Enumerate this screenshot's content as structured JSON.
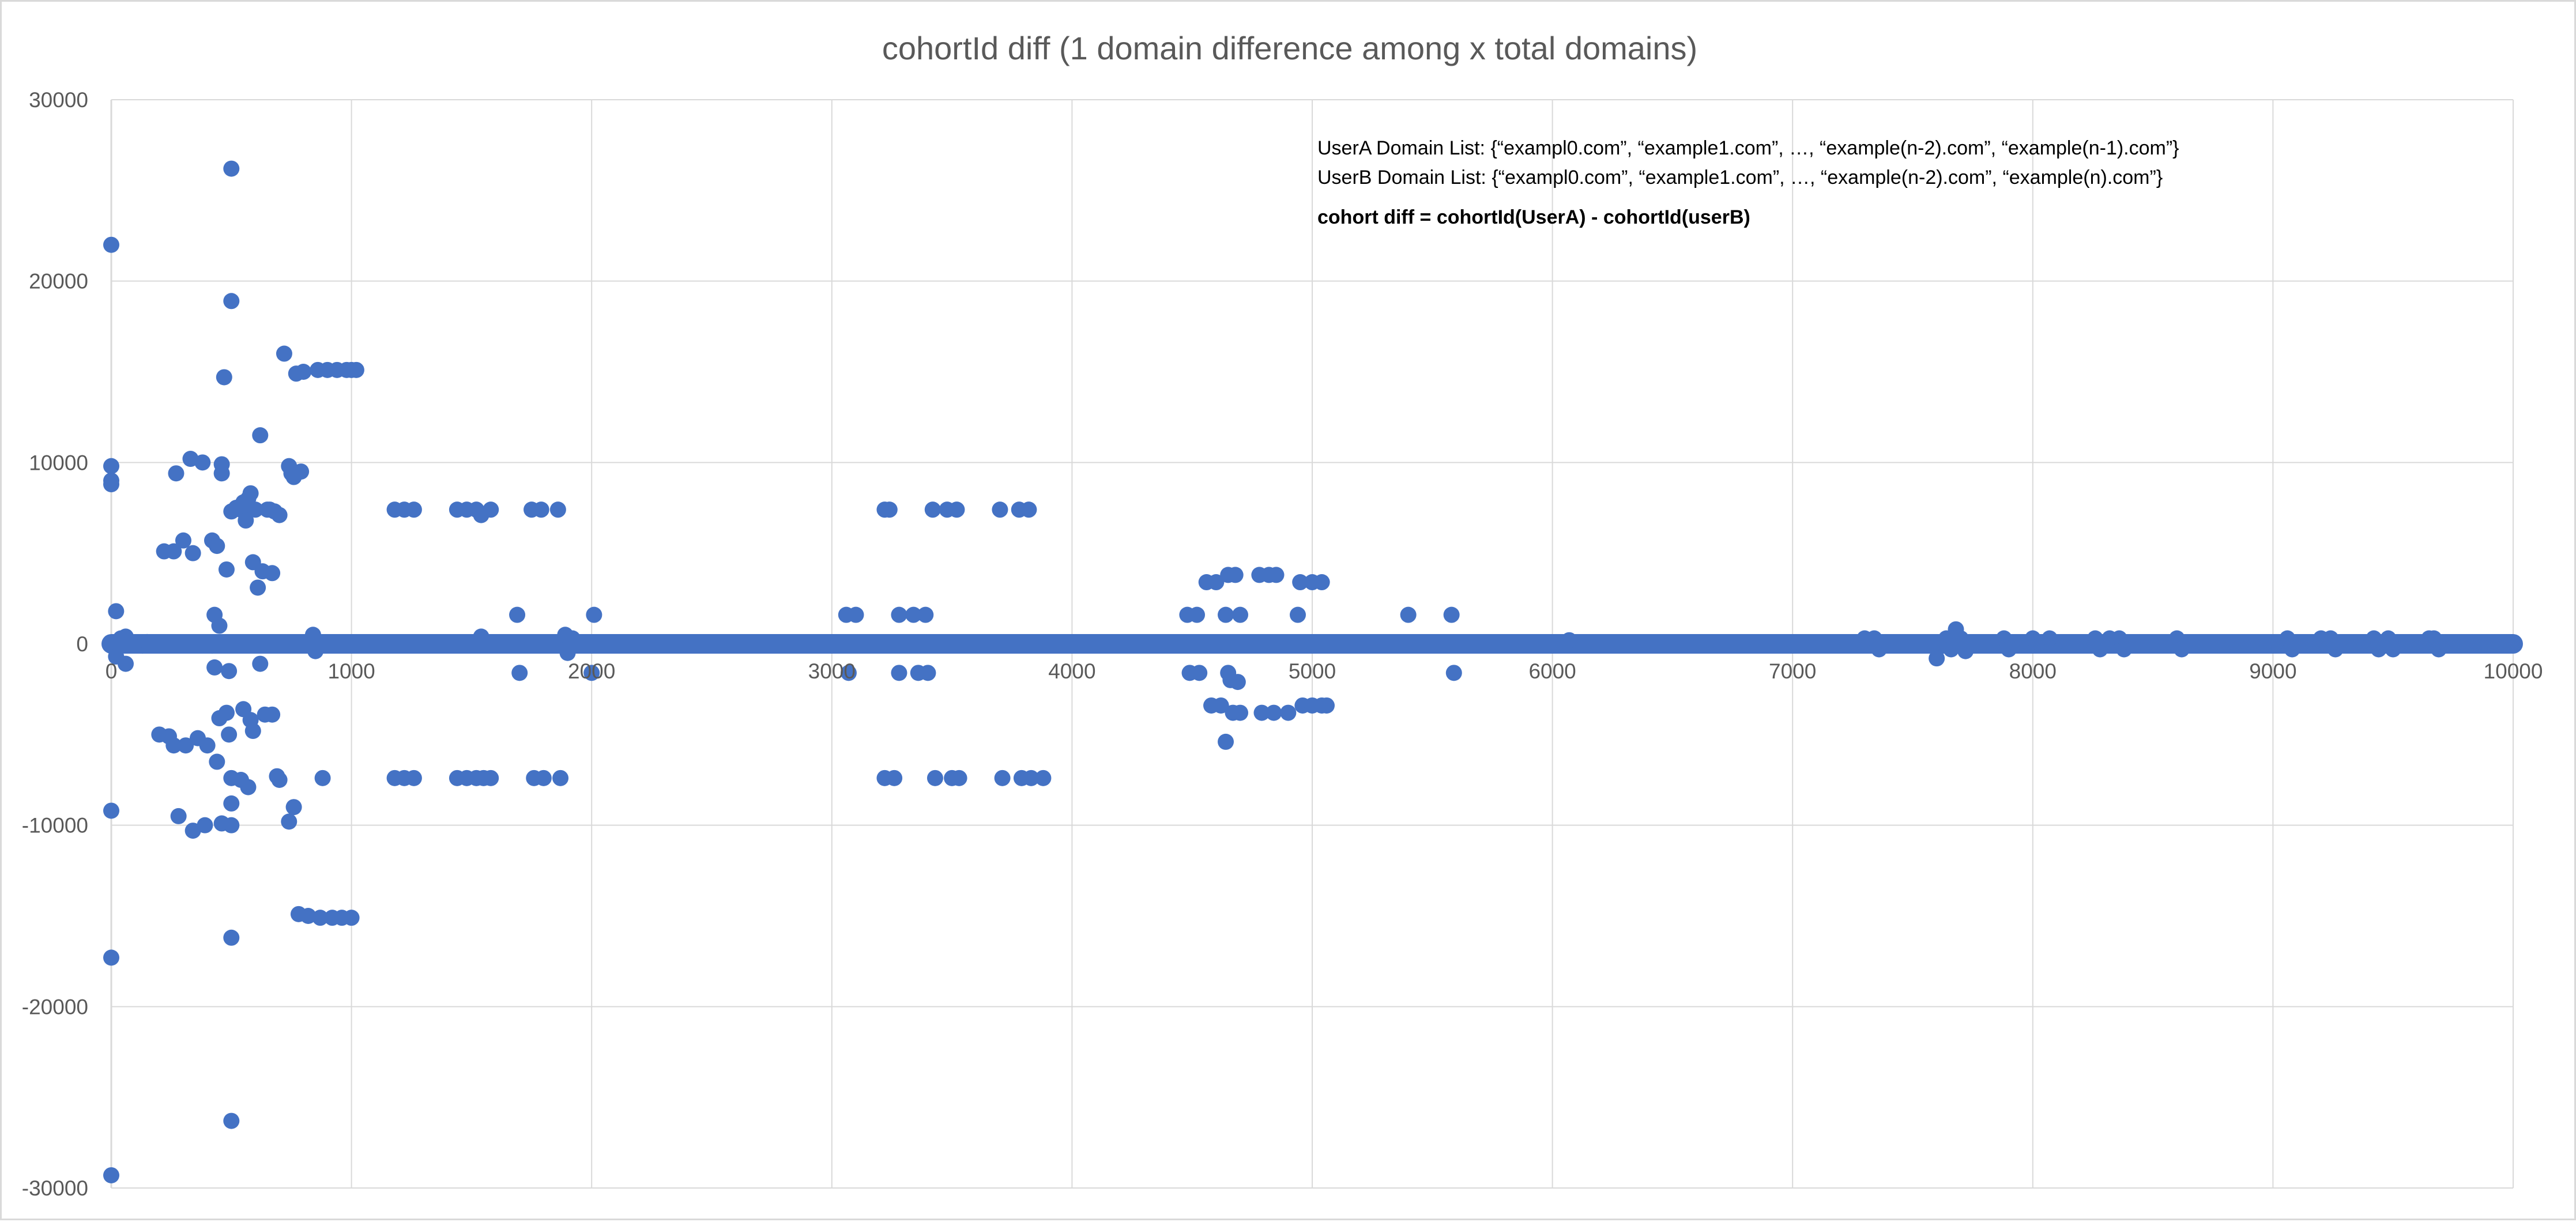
{
  "chart_data": {
    "type": "scatter",
    "title": "cohortId diff (1 domain difference among x total domains)",
    "xlabel": "",
    "ylabel": "",
    "xlim": [
      0,
      10000
    ],
    "ylim": [
      -30000,
      30000
    ],
    "x_ticks": [
      0,
      1000,
      2000,
      3000,
      4000,
      5000,
      6000,
      7000,
      8000,
      9000,
      10000
    ],
    "y_ticks": [
      30000,
      20000,
      10000,
      0,
      -10000,
      -20000,
      -30000
    ],
    "grid": true,
    "legend": "none",
    "marker_color": "#4472c4",
    "annotations": [
      "UserA Domain List:  {“exampl0.com”, “example1.com”, …, “example(n-2).com”, “example(n-1).com”}",
      "UserB Domain List: {“exampl0.com”, “example1.com”, …, “example(n-2).com”, “example(n).com”}",
      "cohort diff = cohortId(UserA) - cohortId(userB)"
    ],
    "baseline": {
      "x_start": 0,
      "x_end": 10000,
      "y": 0
    },
    "points": [
      [
        0,
        -29300
      ],
      [
        0,
        -17300
      ],
      [
        0,
        -9200
      ],
      [
        0,
        22000
      ],
      [
        0,
        9800
      ],
      [
        0,
        9000
      ],
      [
        0,
        8800
      ],
      [
        20,
        1800
      ],
      [
        20,
        -700
      ],
      [
        40,
        300
      ],
      [
        60,
        -1100
      ],
      [
        60,
        400
      ],
      [
        130,
        -100
      ],
      [
        150,
        100
      ],
      [
        200,
        -5000
      ],
      [
        220,
        5100
      ],
      [
        240,
        -5100
      ],
      [
        260,
        5100
      ],
      [
        260,
        -5600
      ],
      [
        270,
        9400
      ],
      [
        280,
        -9500
      ],
      [
        300,
        5700
      ],
      [
        310,
        -5600
      ],
      [
        330,
        10200
      ],
      [
        340,
        -10300
      ],
      [
        340,
        5000
      ],
      [
        360,
        -5200
      ],
      [
        380,
        10000
      ],
      [
        390,
        -10000
      ],
      [
        400,
        -5600
      ],
      [
        420,
        5700
      ],
      [
        420,
        -100
      ],
      [
        430,
        1600
      ],
      [
        430,
        -1300
      ],
      [
        440,
        5400
      ],
      [
        440,
        -6500
      ],
      [
        450,
        1000
      ],
      [
        450,
        -4100
      ],
      [
        460,
        9900
      ],
      [
        460,
        -9900
      ],
      [
        460,
        9400
      ],
      [
        470,
        14700
      ],
      [
        480,
        4100
      ],
      [
        480,
        -3800
      ],
      [
        490,
        -1500
      ],
      [
        490,
        -5000
      ],
      [
        500,
        26200
      ],
      [
        500,
        -26300
      ],
      [
        500,
        18900
      ],
      [
        500,
        -16200
      ],
      [
        500,
        -8800
      ],
      [
        500,
        -10000
      ],
      [
        500,
        7300
      ],
      [
        500,
        -7400
      ],
      [
        520,
        7500
      ],
      [
        540,
        7400
      ],
      [
        540,
        -7500
      ],
      [
        550,
        7800
      ],
      [
        550,
        -3600
      ],
      [
        560,
        6800
      ],
      [
        570,
        8000
      ],
      [
        570,
        -7900
      ],
      [
        580,
        8300
      ],
      [
        580,
        -4200
      ],
      [
        590,
        4500
      ],
      [
        590,
        -4800
      ],
      [
        600,
        7400
      ],
      [
        610,
        3100
      ],
      [
        620,
        11500
      ],
      [
        620,
        -1100
      ],
      [
        630,
        4000
      ],
      [
        640,
        -3900
      ],
      [
        650,
        7400
      ],
      [
        660,
        7400
      ],
      [
        670,
        3900
      ],
      [
        670,
        -3900
      ],
      [
        680,
        7300
      ],
      [
        690,
        -7300
      ],
      [
        700,
        7100
      ],
      [
        700,
        -7500
      ],
      [
        720,
        16000
      ],
      [
        740,
        9800
      ],
      [
        740,
        -9800
      ],
      [
        750,
        9400
      ],
      [
        760,
        9200
      ],
      [
        760,
        -9000
      ],
      [
        770,
        14900
      ],
      [
        780,
        -14900
      ],
      [
        790,
        9500
      ],
      [
        800,
        15000
      ],
      [
        820,
        -15000
      ],
      [
        840,
        500
      ],
      [
        850,
        -400
      ],
      [
        860,
        15100
      ],
      [
        870,
        -15100
      ],
      [
        880,
        -7400
      ],
      [
        900,
        15100
      ],
      [
        920,
        -15100
      ],
      [
        940,
        15100
      ],
      [
        960,
        -15100
      ],
      [
        980,
        15100
      ],
      [
        1000,
        15100
      ],
      [
        1000,
        -15100
      ],
      [
        1020,
        15100
      ],
      [
        1180,
        7400
      ],
      [
        1180,
        -7400
      ],
      [
        1220,
        7400
      ],
      [
        1220,
        -7400
      ],
      [
        1260,
        7400
      ],
      [
        1260,
        -7400
      ],
      [
        1440,
        7400
      ],
      [
        1440,
        -7400
      ],
      [
        1480,
        7400
      ],
      [
        1480,
        -7400
      ],
      [
        1520,
        7400
      ],
      [
        1520,
        -7400
      ],
      [
        1540,
        7100
      ],
      [
        1540,
        400
      ],
      [
        1550,
        -7400
      ],
      [
        1580,
        7400
      ],
      [
        1580,
        -7400
      ],
      [
        1690,
        1600
      ],
      [
        1700,
        -1600
      ],
      [
        1750,
        7400
      ],
      [
        1760,
        -7400
      ],
      [
        1790,
        7400
      ],
      [
        1800,
        -7400
      ],
      [
        1860,
        7400
      ],
      [
        1870,
        -7400
      ],
      [
        1890,
        500
      ],
      [
        1900,
        -500
      ],
      [
        1920,
        300
      ],
      [
        2000,
        -1600
      ],
      [
        2010,
        1600
      ],
      [
        3060,
        1600
      ],
      [
        3070,
        -1600
      ],
      [
        3100,
        1600
      ],
      [
        3220,
        7400
      ],
      [
        3220,
        -7400
      ],
      [
        3240,
        7400
      ],
      [
        3260,
        -7400
      ],
      [
        3280,
        1600
      ],
      [
        3280,
        -1600
      ],
      [
        3340,
        1600
      ],
      [
        3360,
        -1600
      ],
      [
        3390,
        1600
      ],
      [
        3400,
        -1600
      ],
      [
        3420,
        7400
      ],
      [
        3430,
        -7400
      ],
      [
        3480,
        7400
      ],
      [
        3500,
        -7400
      ],
      [
        3520,
        7400
      ],
      [
        3530,
        -7400
      ],
      [
        3700,
        7400
      ],
      [
        3710,
        -7400
      ],
      [
        3780,
        7400
      ],
      [
        3790,
        -7400
      ],
      [
        3820,
        7400
      ],
      [
        3830,
        -7400
      ],
      [
        3880,
        -7400
      ],
      [
        4480,
        1600
      ],
      [
        4490,
        -1600
      ],
      [
        4520,
        1600
      ],
      [
        4530,
        -1600
      ],
      [
        4560,
        3400
      ],
      [
        4580,
        -3400
      ],
      [
        4600,
        3400
      ],
      [
        4620,
        -3400
      ],
      [
        4640,
        1600
      ],
      [
        4640,
        -5400
      ],
      [
        4650,
        3800
      ],
      [
        4650,
        -1600
      ],
      [
        4660,
        -2000
      ],
      [
        4670,
        -3800
      ],
      [
        4680,
        3800
      ],
      [
        4690,
        -2100
      ],
      [
        4700,
        1600
      ],
      [
        4700,
        -3800
      ],
      [
        4780,
        3800
      ],
      [
        4790,
        -3800
      ],
      [
        4820,
        3800
      ],
      [
        4840,
        -3800
      ],
      [
        4850,
        3800
      ],
      [
        4900,
        -3800
      ],
      [
        4940,
        1600
      ],
      [
        4950,
        3400
      ],
      [
        4960,
        -3400
      ],
      [
        5000,
        3400
      ],
      [
        5000,
        -3400
      ],
      [
        5040,
        3400
      ],
      [
        5040,
        -3400
      ],
      [
        5060,
        -3400
      ],
      [
        5400,
        1600
      ],
      [
        5580,
        1600
      ],
      [
        5590,
        -1600
      ],
      [
        6070,
        200
      ],
      [
        7300,
        300
      ],
      [
        7340,
        300
      ],
      [
        7360,
        -300
      ],
      [
        7600,
        -800
      ],
      [
        7640,
        300
      ],
      [
        7660,
        -300
      ],
      [
        7680,
        800
      ],
      [
        7700,
        300
      ],
      [
        7720,
        -400
      ],
      [
        7880,
        300
      ],
      [
        7900,
        -300
      ],
      [
        8000,
        300
      ],
      [
        8070,
        300
      ],
      [
        8260,
        300
      ],
      [
        8280,
        -300
      ],
      [
        8320,
        300
      ],
      [
        8360,
        300
      ],
      [
        8380,
        -300
      ],
      [
        8600,
        300
      ],
      [
        8620,
        -300
      ],
      [
        9060,
        300
      ],
      [
        9080,
        -300
      ],
      [
        9200,
        300
      ],
      [
        9240,
        300
      ],
      [
        9260,
        -300
      ],
      [
        9420,
        300
      ],
      [
        9440,
        -300
      ],
      [
        9480,
        300
      ],
      [
        9500,
        -300
      ],
      [
        9650,
        300
      ],
      [
        9670,
        300
      ],
      [
        9690,
        -300
      ]
    ]
  }
}
